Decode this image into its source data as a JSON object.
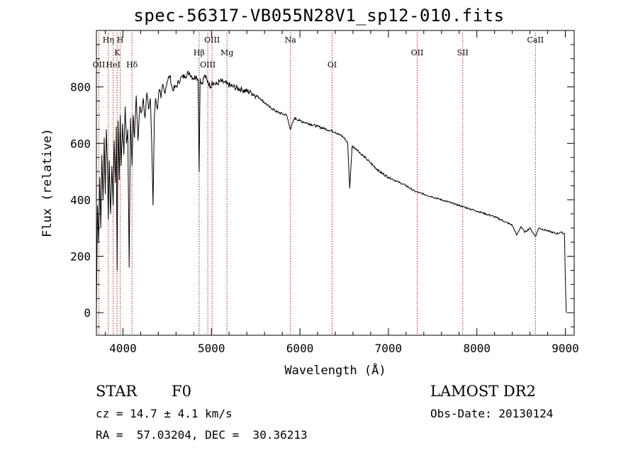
{
  "chart_data": {
    "type": "line",
    "title": "spec-56317-VB055N28V1_sp12-010.fits",
    "xlabel": "Wavelength (Å)",
    "ylabel": "Flux (relative)",
    "xlim": [
      3700,
      9100
    ],
    "ylim": [
      -80,
      1000
    ],
    "x_ticks": [
      "4000",
      "5000",
      "6000",
      "7000",
      "8000",
      "9000"
    ],
    "y_ticks": [
      "0",
      "200",
      "400",
      "600",
      "800"
    ],
    "x_tick_values": [
      4000,
      5000,
      6000,
      7000,
      8000,
      9000
    ],
    "y_tick_values": [
      0,
      200,
      400,
      600,
      800
    ],
    "grid": false,
    "line_color": "#000000",
    "marker_color": "#b22222",
    "spectral_lines": [
      {
        "label": "OII",
        "wavelength": 3727,
        "row": 3
      },
      {
        "label": "Hη",
        "wavelength": 3835,
        "row": 1
      },
      {
        "label": "HeI",
        "wavelength": 3889,
        "row": 3
      },
      {
        "label": "K",
        "wavelength": 3934,
        "row": 2
      },
      {
        "label": "H",
        "wavelength": 3969,
        "row": 1
      },
      {
        "label": "Hδ",
        "wavelength": 4102,
        "row": 3
      },
      {
        "label": "Hβ",
        "wavelength": 4861,
        "row": 2
      },
      {
        "label": "OIII",
        "wavelength": 4959,
        "row": 3
      },
      {
        "label": "OIII",
        "wavelength": 5007,
        "row": 1
      },
      {
        "label": "Mg",
        "wavelength": 5175,
        "row": 2
      },
      {
        "label": "Na",
        "wavelength": 5893,
        "row": 1
      },
      {
        "label": "OI",
        "wavelength": 6364,
        "row": 3
      },
      {
        "label": "OII",
        "wavelength": 7325,
        "row": 2
      },
      {
        "label": "SII",
        "wavelength": 7840,
        "row": 2
      },
      {
        "label": "CaII",
        "wavelength": 8662,
        "row": 1
      }
    ],
    "series": [
      {
        "x": [
          3700,
          3712,
          3725,
          3738,
          3750,
          3762,
          3775,
          3788,
          3800,
          3812,
          3825,
          3835,
          3845,
          3860,
          3875,
          3889,
          3900,
          3915,
          3925,
          3934,
          3945,
          3958,
          3969,
          3980,
          3995,
          4010,
          4025,
          4040,
          4055,
          4070,
          4085,
          4102,
          4115,
          4130,
          4150,
          4170,
          4190,
          4210,
          4230,
          4250,
          4270,
          4290,
          4310,
          4325,
          4340,
          4355,
          4370,
          4390,
          4410,
          4430,
          4450,
          4470,
          4500,
          4530,
          4560,
          4600,
          4650,
          4700,
          4750,
          4800,
          4830,
          4850,
          4861,
          4872,
          4890,
          4920,
          4959,
          4990,
          5007,
          5030,
          5060,
          5100,
          5175,
          5250,
          5350,
          5450,
          5550,
          5650,
          5750,
          5850,
          5893,
          5940,
          6000,
          6100,
          6200,
          6300,
          6400,
          6450,
          6500,
          6540,
          6563,
          6590,
          6640,
          6700,
          6800,
          6900,
          7000,
          7100,
          7200,
          7300,
          7400,
          7500,
          7600,
          7700,
          7800,
          7900,
          8000,
          8100,
          8200,
          8300,
          8400,
          8450,
          8498,
          8542,
          8600,
          8662,
          8700,
          8800,
          8900,
          8950,
          8990,
          9000,
          9010
        ],
        "y": [
          0,
          380,
          250,
          480,
          300,
          560,
          400,
          620,
          420,
          650,
          520,
          330,
          540,
          350,
          520,
          380,
          610,
          460,
          660,
          150,
          680,
          470,
          700,
          520,
          670,
          560,
          730,
          600,
          650,
          160,
          690,
          520,
          700,
          620,
          770,
          610,
          730,
          710,
          760,
          690,
          780,
          720,
          760,
          600,
          380,
          700,
          760,
          720,
          790,
          760,
          810,
          780,
          820,
          840,
          790,
          800,
          830,
          840,
          850,
          830,
          840,
          820,
          500,
          830,
          810,
          840,
          820,
          800,
          820,
          810,
          810,
          820,
          810,
          800,
          790,
          780,
          760,
          730,
          710,
          700,
          650,
          690,
          680,
          670,
          660,
          650,
          640,
          630,
          620,
          600,
          440,
          590,
          580,
          560,
          530,
          500,
          480,
          465,
          450,
          430,
          420,
          410,
          400,
          390,
          380,
          370,
          360,
          350,
          340,
          325,
          310,
          275,
          305,
          285,
          300,
          270,
          300,
          290,
          280,
          285,
          280,
          120,
          0
        ]
      }
    ]
  },
  "footer": {
    "object_class": "STAR",
    "subclass": "F0",
    "survey": "LAMOST DR2",
    "redshift": "cz = 14.7 ± 4.1 km/s",
    "obs_date": "Obs-Date: 20130124",
    "coords": "RA =  57.03204, DEC =  30.36213"
  }
}
